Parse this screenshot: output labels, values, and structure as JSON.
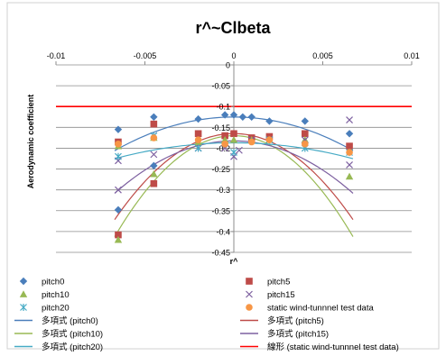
{
  "chart_data": {
    "type": "scatter",
    "title": "r^~Clbeta",
    "xlabel": "r^",
    "ylabel": "Aerodynamic coefficient",
    "xlim": [
      -0.01,
      0.01
    ],
    "ylim": [
      -0.45,
      0
    ],
    "x_ticks": [
      -0.01,
      -0.005,
      0,
      0.005,
      0.01
    ],
    "x_tick_labels": [
      "-0.01",
      "-0.005",
      "0",
      "0.005",
      "0.01"
    ],
    "y_ticks": [
      0,
      -0.05,
      -0.1,
      -0.15,
      -0.2,
      -0.25,
      -0.3,
      -0.35,
      -0.4,
      -0.45
    ],
    "y_tick_labels": [
      "0",
      "-0.05",
      "-0.1",
      "-0.15",
      "-0.2",
      "-0.25",
      "-0.3",
      "-0.35",
      "-0.4",
      "-0.45"
    ],
    "grid": true,
    "legend_position": "bottom",
    "series": [
      {
        "name": "pitch0",
        "marker": "diamond",
        "color": "#4a7ebb",
        "x": [
          -0.0065,
          -0.0065,
          -0.0045,
          -0.0045,
          -0.002,
          -0.0005,
          0,
          0.0005,
          0.001,
          0.002,
          0.004,
          0.0065
        ],
        "y": [
          -0.155,
          -0.348,
          -0.242,
          -0.125,
          -0.13,
          -0.12,
          -0.12,
          -0.125,
          -0.125,
          -0.135,
          -0.135,
          -0.165
        ]
      },
      {
        "name": "pitch5",
        "marker": "square",
        "color": "#be4b48",
        "x": [
          -0.0065,
          -0.0065,
          -0.0045,
          -0.0045,
          -0.002,
          -0.0005,
          0,
          0.001,
          0.002,
          0.004,
          0.0065
        ],
        "y": [
          -0.185,
          -0.408,
          -0.285,
          -0.142,
          -0.165,
          -0.17,
          -0.165,
          -0.175,
          -0.172,
          -0.165,
          -0.195
        ]
      },
      {
        "name": "pitch10",
        "marker": "triangle",
        "color": "#98b954",
        "x": [
          -0.0065,
          -0.0065,
          -0.0045,
          -0.0045,
          -0.002,
          -0.0005,
          0,
          0.001,
          0.002,
          0.004,
          0.0065
        ],
        "y": [
          -0.195,
          -0.42,
          -0.262,
          -0.175,
          -0.185,
          -0.18,
          -0.18,
          -0.18,
          -0.18,
          -0.18,
          -0.268
        ]
      },
      {
        "name": "pitch15",
        "marker": "x",
        "color": "#7d60a0",
        "x": [
          -0.0065,
          -0.0065,
          -0.0045,
          -0.0045,
          -0.002,
          -0.0005,
          0,
          0.0003,
          0.001,
          0.002,
          0.004,
          0.0065,
          0.0065
        ],
        "y": [
          -0.23,
          -0.3,
          -0.215,
          -0.17,
          -0.2,
          -0.2,
          -0.22,
          -0.205,
          -0.18,
          -0.18,
          -0.18,
          -0.132,
          -0.24
        ]
      },
      {
        "name": "pitch20",
        "marker": "asterisk",
        "color": "#46aac5",
        "x": [
          -0.0065,
          -0.0045,
          -0.002,
          0,
          0.002,
          0.004,
          0.0065
        ],
        "y": [
          -0.22,
          -0.17,
          -0.2,
          -0.21,
          -0.18,
          -0.2,
          -0.21
        ]
      },
      {
        "name": "static wind-tunnnel test data",
        "marker": "circle",
        "color": "#f79646",
        "x": [
          -0.0065,
          -0.0045,
          -0.002,
          -0.0005,
          0.001,
          0.002,
          0.004,
          0.0065
        ],
        "y": [
          -0.19,
          -0.175,
          -0.18,
          -0.19,
          -0.185,
          -0.18,
          -0.19,
          -0.21
        ]
      }
    ],
    "trendlines": [
      {
        "name": "多項式 (pitch0)",
        "color": "#4a7ebb",
        "coeffs": [
          -0.1251,
          0,
          -1800
        ]
      },
      {
        "name": "多項式 (pitch5)",
        "color": "#be4b48",
        "coeffs": [
          -0.1649,
          0,
          -4600
        ]
      },
      {
        "name": "多項式 (pitch10)",
        "color": "#98b954",
        "coeffs": [
          -0.17,
          0,
          -5400
        ]
      },
      {
        "name": "多項式 (pitch15)",
        "color": "#7d60a0",
        "coeffs": [
          -0.1825,
          0,
          -2800
        ]
      },
      {
        "name": "多項式 (pitch20)",
        "color": "#46aac5",
        "coeffs": [
          -0.187,
          0,
          -850
        ]
      },
      {
        "name": "線形 (static wind-tunnnel test data)",
        "color": "#ff0000",
        "coeffs": [
          -0.1,
          0,
          0
        ]
      }
    ]
  }
}
